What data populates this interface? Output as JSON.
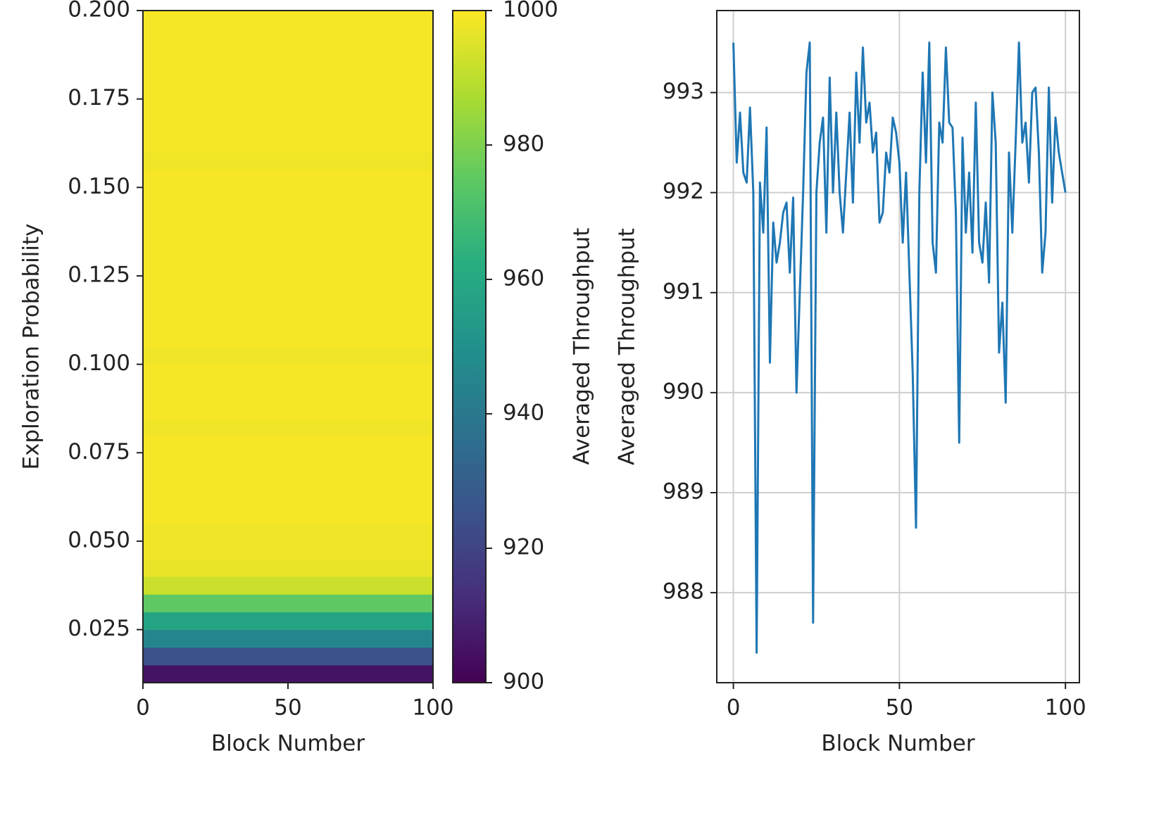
{
  "chart_data": [
    {
      "type": "heatmap",
      "xlabel": "Block Number",
      "ylabel": "Exploration Probability",
      "xlim": [
        0,
        100
      ],
      "xticks": [
        0,
        50,
        100
      ],
      "ylim": [
        0.01,
        0.2
      ],
      "yticks": [
        0.025,
        {
          "value": 0.05,
          "label": "0.050"
        },
        0.075,
        {
          "value": 0.1,
          "label": "0.100"
        },
        0.125,
        {
          "value": 0.15,
          "label": "0.150"
        },
        0.175,
        {
          "value": 0.2,
          "label": "0.200"
        }
      ],
      "ybins": [
        0.01,
        0.015,
        0.02,
        0.025,
        0.03,
        0.035,
        0.04,
        0.045,
        0.05,
        0.055,
        0.06,
        0.065,
        0.07,
        0.075,
        0.08,
        0.085,
        0.09,
        0.095,
        0.1,
        0.105,
        0.11,
        0.115,
        0.12,
        0.125,
        0.13,
        0.135,
        0.14,
        0.145,
        0.15,
        0.155,
        0.16,
        0.165,
        0.17,
        0.175,
        0.18,
        0.185,
        0.19,
        0.195,
        0.2
      ],
      "values": [
        905,
        925,
        945,
        958,
        975,
        992,
        997,
        998,
        998,
        999,
        999,
        999,
        999,
        999,
        998,
        999,
        999,
        999,
        998,
        999,
        999,
        999,
        999,
        999,
        999,
        999,
        999,
        999,
        999,
        998,
        999,
        999,
        999,
        999,
        999,
        999,
        999,
        999
      ],
      "colormap": "viridis",
      "clim": [
        900,
        1000
      ],
      "cticks": [
        900,
        920,
        940,
        960,
        980,
        1000
      ],
      "colorbar_label": "Averaged Throughput"
    },
    {
      "type": "line",
      "xlabel": "Block Number",
      "ylabel": "Averaged Throughput",
      "xlim": [
        -5,
        104.2
      ],
      "xticks": [
        0,
        50,
        100
      ],
      "ylim": [
        987.1,
        993.82
      ],
      "yticks": [
        988,
        989,
        990,
        991,
        992,
        993
      ],
      "grid": true,
      "color": "#1f77b4",
      "x": [
        0,
        1,
        2,
        3,
        4,
        5,
        6,
        7,
        8,
        9,
        10,
        11,
        12,
        13,
        14,
        15,
        16,
        17,
        18,
        19,
        20,
        21,
        22,
        23,
        24,
        25,
        26,
        27,
        28,
        29,
        30,
        31,
        32,
        33,
        34,
        35,
        36,
        37,
        38,
        39,
        40,
        41,
        42,
        43,
        44,
        45,
        46,
        47,
        48,
        49,
        50,
        51,
        52,
        53,
        54,
        55,
        56,
        57,
        58,
        59,
        60,
        61,
        62,
        63,
        64,
        65,
        66,
        67,
        68,
        69,
        70,
        71,
        72,
        73,
        74,
        75,
        76,
        77,
        78,
        79,
        80,
        81,
        82,
        83,
        84,
        85,
        86,
        87,
        88,
        89,
        90,
        91,
        92,
        93,
        94,
        95,
        96,
        97,
        98,
        99,
        100
      ],
      "values": [
        993.5,
        992.3,
        992.8,
        992.2,
        992.1,
        992.85,
        992.0,
        987.4,
        992.1,
        991.6,
        992.65,
        990.3,
        991.7,
        991.3,
        991.5,
        991.8,
        991.9,
        991.2,
        991.95,
        990.0,
        991.0,
        992.0,
        993.2,
        993.5,
        987.7,
        992.0,
        992.5,
        992.75,
        991.6,
        993.15,
        992.0,
        992.8,
        992.0,
        991.6,
        992.2,
        992.8,
        991.9,
        993.2,
        992.5,
        993.45,
        992.7,
        992.9,
        992.4,
        992.6,
        991.7,
        991.8,
        992.4,
        992.2,
        992.75,
        992.6,
        992.3,
        991.5,
        992.2,
        991.2,
        990.2,
        988.65,
        992.0,
        993.2,
        992.3,
        993.5,
        991.5,
        991.2,
        992.7,
        992.5,
        993.45,
        992.7,
        992.65,
        991.8,
        989.5,
        992.55,
        991.6,
        992.2,
        991.4,
        992.9,
        991.5,
        991.3,
        991.9,
        991.1,
        993.0,
        992.5,
        990.4,
        990.9,
        989.9,
        992.4,
        991.6,
        992.5,
        993.5,
        992.5,
        992.7,
        992.1,
        993.0,
        993.05,
        992.4,
        991.2,
        991.6,
        993.05,
        991.9,
        992.75,
        992.4,
        992.2,
        992.0
      ]
    }
  ]
}
